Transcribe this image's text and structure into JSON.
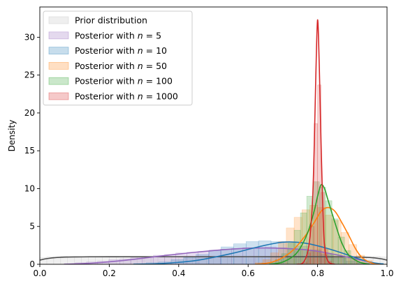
{
  "chart_data": {
    "type": "area",
    "xlabel": "",
    "ylabel": "Density",
    "xlim": [
      0,
      1
    ],
    "ylim": [
      0,
      34
    ],
    "xticks": [
      "0.0",
      "0.2",
      "0.4",
      "0.6",
      "0.8",
      "1.0"
    ],
    "yticks": [
      "0",
      "5",
      "10",
      "15",
      "20",
      "25",
      "30"
    ],
    "grid": false,
    "legend_position": "upper-left",
    "series": [
      {
        "name": "Prior distribution",
        "color": "#4d4d4d",
        "hist_color": "#bfbfbf",
        "kde": [
          [
            0,
            0.55
          ],
          [
            0.02,
            0.75
          ],
          [
            0.05,
            0.9
          ],
          [
            0.1,
            0.97
          ],
          [
            0.2,
            1.0
          ],
          [
            0.5,
            1.0
          ],
          [
            0.8,
            1.0
          ],
          [
            0.9,
            0.97
          ],
          [
            0.95,
            0.9
          ],
          [
            0.98,
            0.75
          ],
          [
            1.0,
            0.55
          ]
        ],
        "hist_x": [
          0.0,
          1.0
        ],
        "hist_bins": [
          0.9,
          1.0,
          0.95,
          1.05,
          1.0,
          0.95,
          1.0,
          1.05,
          0.95,
          1.0,
          1.0,
          0.95,
          1.05,
          1.0,
          0.95,
          1.0,
          1.05,
          0.95,
          1.0,
          1.0,
          0.95,
          1.05,
          1.0,
          0.95,
          1.0,
          1.05,
          0.95,
          1.0,
          1.0,
          0.95,
          1.05,
          1.0,
          0.95,
          1.0,
          1.05,
          0.95,
          1.0,
          1.0,
          0.95,
          1.05,
          1.0,
          0.95,
          1.0,
          1.05,
          0.95,
          1.0,
          1.0,
          0.95,
          1.05,
          1.0
        ]
      },
      {
        "name": "Posterior with",
        "n": "5",
        "color": "#9467bd",
        "kde": [
          [
            0.07,
            0
          ],
          [
            0.15,
            0.15
          ],
          [
            0.25,
            0.55
          ],
          [
            0.35,
            1.1
          ],
          [
            0.45,
            1.6
          ],
          [
            0.55,
            2.0
          ],
          [
            0.62,
            2.15
          ],
          [
            0.7,
            2.1
          ],
          [
            0.78,
            1.85
          ],
          [
            0.85,
            1.3
          ],
          [
            0.9,
            0.8
          ],
          [
            0.95,
            0.3
          ],
          [
            0.97,
            0.1
          ]
        ],
        "hist_x": [
          0.07,
          0.97
        ],
        "hist_bins": [
          0.1,
          0.2,
          0.3,
          0.4,
          0.6,
          0.7,
          0.9,
          1.0,
          1.2,
          1.3,
          1.5,
          1.6,
          1.7,
          1.9,
          2.0,
          2.1,
          2.2,
          2.1,
          2.3,
          2.2,
          2.0,
          1.9,
          1.7,
          1.4,
          1.1,
          0.8,
          0.5,
          0.2
        ]
      },
      {
        "name": "Posterior with",
        "n": "10",
        "color": "#1f77b4",
        "kde": [
          [
            0.27,
            0
          ],
          [
            0.35,
            0.1
          ],
          [
            0.45,
            0.5
          ],
          [
            0.55,
            1.4
          ],
          [
            0.62,
            2.2
          ],
          [
            0.68,
            2.8
          ],
          [
            0.72,
            2.95
          ],
          [
            0.77,
            2.75
          ],
          [
            0.82,
            2.2
          ],
          [
            0.87,
            1.5
          ],
          [
            0.92,
            0.7
          ],
          [
            0.96,
            0.2
          ],
          [
            0.99,
            0.05
          ]
        ],
        "hist_x": [
          0.27,
          0.99
        ],
        "hist_bins": [
          0.1,
          0.2,
          0.3,
          0.6,
          0.9,
          1.3,
          1.8,
          2.3,
          2.7,
          3.0,
          3.1,
          3.0,
          2.8,
          2.4,
          1.9,
          1.3,
          0.8,
          0.4,
          0.2,
          0.1
        ]
      },
      {
        "name": "Posterior with",
        "n": "50",
        "color": "#ff7f0e",
        "kde": [
          [
            0.62,
            0
          ],
          [
            0.67,
            0.3
          ],
          [
            0.72,
            1.5
          ],
          [
            0.76,
            3.5
          ],
          [
            0.79,
            5.5
          ],
          [
            0.81,
            7.0
          ],
          [
            0.83,
            7.5
          ],
          [
            0.85,
            7.0
          ],
          [
            0.87,
            5.5
          ],
          [
            0.89,
            3.8
          ],
          [
            0.91,
            2.0
          ],
          [
            0.93,
            0.8
          ],
          [
            0.96,
            0.1
          ],
          [
            0.98,
            0
          ]
        ],
        "hist_x": [
          0.62,
          0.98
        ],
        "hist_bins": [
          0.2,
          0.6,
          1.5,
          3.0,
          4.8,
          6.2,
          7.2,
          7.8,
          7.5,
          6.5,
          5.8,
          4.2,
          2.6,
          1.2,
          0.5,
          0.1
        ]
      },
      {
        "name": "Posterior with",
        "n": "100",
        "color": "#2ca02c",
        "kde": [
          [
            0.66,
            0
          ],
          [
            0.7,
            0.3
          ],
          [
            0.74,
            1.5
          ],
          [
            0.77,
            4.0
          ],
          [
            0.79,
            7.0
          ],
          [
            0.8,
            9.0
          ],
          [
            0.81,
            10.5
          ],
          [
            0.82,
            10.0
          ],
          [
            0.83,
            8.5
          ],
          [
            0.85,
            5.5
          ],
          [
            0.87,
            2.8
          ],
          [
            0.89,
            1.2
          ],
          [
            0.92,
            0.3
          ],
          [
            0.95,
            0
          ]
        ],
        "hist_x": [
          0.66,
          0.95
        ],
        "hist_bins": [
          0.2,
          0.6,
          1.4,
          2.8,
          4.5,
          6.8,
          9.0,
          10.9,
          10.2,
          8.4,
          6.0,
          3.6,
          1.8,
          0.8,
          0.3,
          0.1
        ]
      },
      {
        "name": "Posterior with",
        "n": "1000",
        "color": "#d62728",
        "kde": [
          [
            0.74,
            0
          ],
          [
            0.76,
            0.3
          ],
          [
            0.775,
            2.5
          ],
          [
            0.785,
            8.0
          ],
          [
            0.79,
            15.0
          ],
          [
            0.795,
            25.0
          ],
          [
            0.8,
            32.3
          ],
          [
            0.805,
            26.0
          ],
          [
            0.81,
            16.0
          ],
          [
            0.815,
            7.5
          ],
          [
            0.82,
            2.5
          ],
          [
            0.83,
            0.4
          ],
          [
            0.85,
            0
          ]
        ],
        "hist_x": [
          0.76,
          0.84
        ],
        "hist_bins": [
          0.3,
          1.5,
          5.0,
          18.6,
          23.7,
          9.5,
          2.0,
          0.4
        ]
      }
    ]
  }
}
